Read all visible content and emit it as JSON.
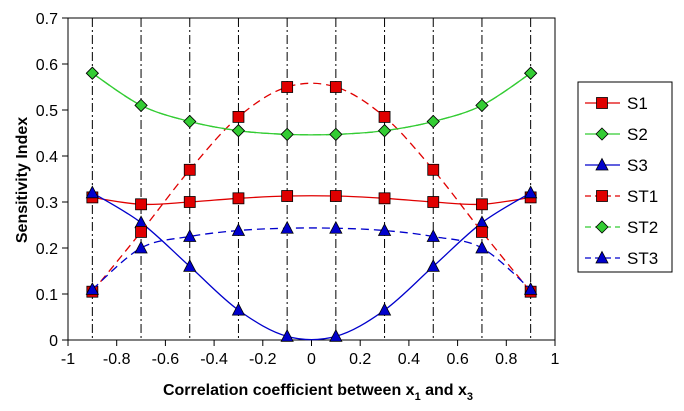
{
  "chart_data": {
    "type": "line",
    "xlabel": {
      "main": "Correlation coefficient between x",
      "sub1": "1",
      "mid": " and x",
      "sub2": "3"
    },
    "ylabel": "Sensitivity Index",
    "xlim": [
      -1,
      1
    ],
    "ylim": [
      0,
      0.7
    ],
    "x_ticks": [
      -1,
      -0.8,
      -0.6,
      -0.4,
      -0.2,
      0,
      0.2,
      0.4,
      0.6,
      0.8,
      1
    ],
    "x_tick_labels": [
      "-1",
      "-0.8",
      "-0.6",
      "-0.4",
      "-0.2",
      "0",
      "0.2",
      "0.4",
      "0.6",
      "0.8",
      "1"
    ],
    "y_ticks": [
      0,
      0.1,
      0.2,
      0.3,
      0.4,
      0.5,
      0.6,
      0.7
    ],
    "y_tick_labels": [
      "0",
      "0.1",
      "0.2",
      "0.3",
      "0.4",
      "0.5",
      "0.6",
      "0.7"
    ],
    "vertical_gridlines": "dash-dot at x = -0.9, -0.7, ..., 0.9",
    "legend_position": "right",
    "x": [
      -0.9,
      -0.7,
      -0.5,
      -0.3,
      -0.1,
      0.1,
      0.3,
      0.5,
      0.7,
      0.9
    ],
    "series": [
      {
        "name": "S1",
        "color": "#e00000",
        "marker": "square",
        "dashed": false,
        "values": [
          0.31,
          0.295,
          0.3,
          0.308,
          0.313,
          0.313,
          0.308,
          0.3,
          0.295,
          0.31
        ]
      },
      {
        "name": "S2",
        "color": "#33cc33",
        "marker": "diamond",
        "dashed": false,
        "values": [
          0.58,
          0.51,
          0.475,
          0.455,
          0.447,
          0.447,
          0.455,
          0.475,
          0.51,
          0.58
        ]
      },
      {
        "name": "S3",
        "color": "#0000cc",
        "marker": "triangle",
        "dashed": false,
        "values": [
          0.32,
          0.255,
          0.16,
          0.065,
          0.008,
          0.008,
          0.065,
          0.16,
          0.255,
          0.32
        ]
      },
      {
        "name": "ST1",
        "color": "#e00000",
        "marker": "square",
        "dashed": true,
        "values": [
          0.105,
          0.235,
          0.37,
          0.485,
          0.55,
          0.55,
          0.485,
          0.37,
          0.235,
          0.105
        ]
      },
      {
        "name": "ST2",
        "color": "#33cc33",
        "marker": "diamond",
        "dashed": true,
        "values": [
          0.58,
          0.51,
          0.475,
          0.455,
          0.447,
          0.447,
          0.455,
          0.475,
          0.51,
          0.58
        ]
      },
      {
        "name": "ST3",
        "color": "#0000cc",
        "marker": "triangle",
        "dashed": true,
        "values": [
          0.11,
          0.2,
          0.225,
          0.238,
          0.243,
          0.243,
          0.238,
          0.225,
          0.2,
          0.11
        ]
      }
    ]
  }
}
